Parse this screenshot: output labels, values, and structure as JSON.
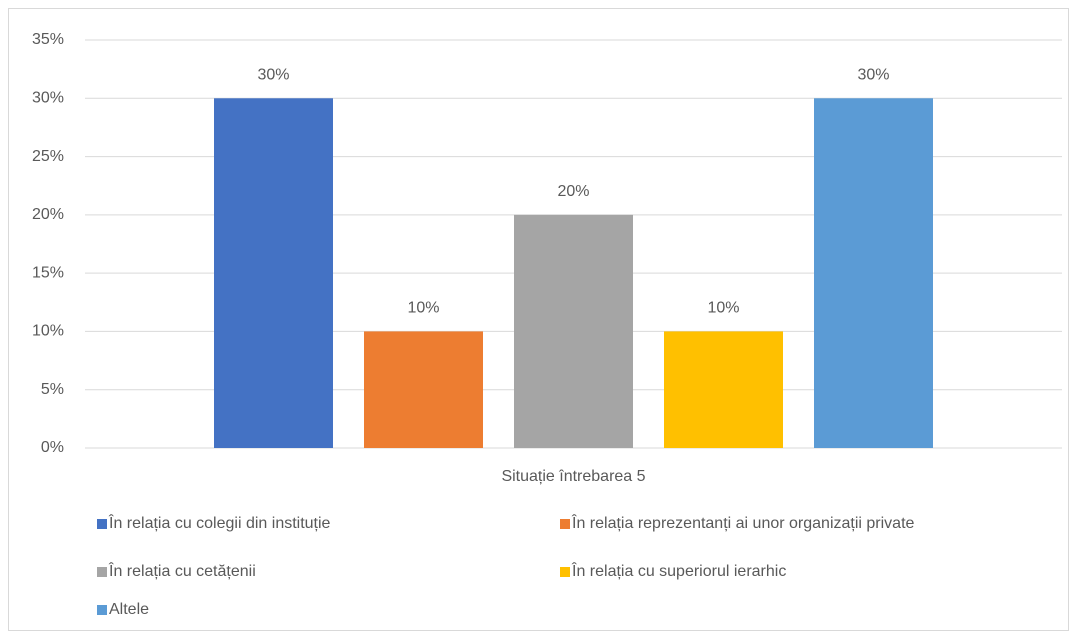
{
  "chart_data": {
    "type": "bar",
    "categories": [
      "Situație întrebarea 5"
    ],
    "series": [
      {
        "name": "În relația cu colegii din instituție",
        "color": "#4472c4",
        "values": [
          30
        ],
        "value_labels": [
          "30%"
        ]
      },
      {
        "name": "În relația reprezentanți ai unor organizații private",
        "color": "#ed7d31",
        "values": [
          10
        ],
        "value_labels": [
          "10%"
        ]
      },
      {
        "name": "În relația cu cetățenii",
        "color": "#a5a5a5",
        "values": [
          20
        ],
        "value_labels": [
          "20%"
        ]
      },
      {
        "name": "În relația cu superiorul ierarhic",
        "color": "#ffc000",
        "values": [
          10
        ],
        "value_labels": [
          "10%"
        ]
      },
      {
        "name": "Altele",
        "color": "#5b9bd5",
        "values": [
          30
        ],
        "value_labels": [
          "30%"
        ]
      }
    ],
    "ylim": [
      0,
      35
    ],
    "yticks": [
      {
        "value": 0,
        "label": "0%"
      },
      {
        "value": 5,
        "label": "5%"
      },
      {
        "value": 10,
        "label": "10%"
      },
      {
        "value": 15,
        "label": "15%"
      },
      {
        "value": 20,
        "label": "20%"
      },
      {
        "value": 25,
        "label": "25%"
      },
      {
        "value": 30,
        "label": "30%"
      },
      {
        "value": 35,
        "label": "35%"
      }
    ],
    "grid": true,
    "legend": "bottom"
  }
}
